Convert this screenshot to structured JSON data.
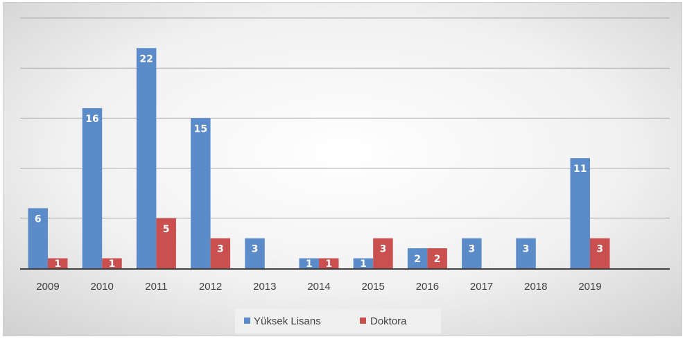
{
  "chart_data": {
    "type": "bar",
    "categories": [
      "2009",
      "2010",
      "2011",
      "2012",
      "2013",
      "2014",
      "2015",
      "2016",
      "2017",
      "2018",
      "2019"
    ],
    "series": [
      {
        "name": "Yüksek Lisans",
        "values": [
          6,
          16,
          22,
          15,
          3,
          1,
          1,
          2,
          3,
          3,
          11
        ],
        "color": "#5b8bc9"
      },
      {
        "name": "Doktora",
        "values": [
          1,
          1,
          5,
          3,
          0,
          1,
          3,
          2,
          0,
          0,
          3
        ],
        "color": "#c9504f"
      }
    ],
    "title": "",
    "xlabel": "",
    "ylabel": "",
    "ylim": [
      0,
      25
    ],
    "grid": true,
    "legend": "bottom",
    "data_labels": true
  }
}
